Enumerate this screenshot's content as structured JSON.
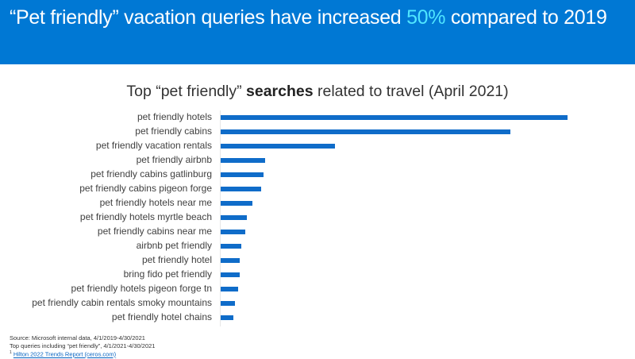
{
  "header": {
    "headline_prefix": "“Pet friendly” vacation queries have increased ",
    "headline_highlight": "50%",
    "headline_suffix": " compared to 2019",
    "banner_color": "#0078d4",
    "highlight_color": "#50e6ff"
  },
  "chart_title": {
    "prefix": "Top “pet friendly” ",
    "bold": "searches",
    "suffix": " related to travel (April 2021)"
  },
  "chart_data": {
    "type": "bar",
    "orientation": "horizontal",
    "title": "Top “pet friendly” searches related to travel (April 2021)",
    "xlabel": "",
    "ylabel": "",
    "bar_color": "#0f6cc9",
    "grid": false,
    "legend": null,
    "value_axis_labels": false,
    "note": "Relative values normalized to top query = 100 (no axis ticks shown)",
    "categories": [
      "pet friendly hotels",
      "pet friendly cabins",
      "pet friendly vacation rentals",
      "pet friendly airbnb",
      "pet friendly cabins gatlinburg",
      "pet friendly cabins pigeon forge",
      "pet friendly hotels near me",
      "pet friendly hotels myrtle beach",
      "pet friendly cabins near me",
      "airbnb pet friendly",
      "pet friendly hotel",
      "bring fido pet friendly",
      "pet friendly hotels pigeon forge tn",
      "pet friendly cabin rentals smoky mountains",
      "pet friendly hotel chains"
    ],
    "values": [
      100,
      83.5,
      33,
      12.8,
      12.4,
      11.7,
      9.2,
      7.6,
      7.1,
      6.0,
      5.5,
      5.5,
      5.0,
      4.1,
      3.7
    ]
  },
  "rows": [
    {
      "label": "pet friendly hotels",
      "pct": "100%"
    },
    {
      "label": "pet friendly cabins",
      "pct": "83.5%"
    },
    {
      "label": "pet friendly vacation rentals",
      "pct": "33%"
    },
    {
      "label": "pet friendly airbnb",
      "pct": "12.8%"
    },
    {
      "label": "pet friendly cabins gatlinburg",
      "pct": "12.4%"
    },
    {
      "label": "pet friendly cabins pigeon forge",
      "pct": "11.7%"
    },
    {
      "label": "pet friendly hotels near me",
      "pct": "9.2%"
    },
    {
      "label": "pet friendly hotels myrtle beach",
      "pct": "7.6%"
    },
    {
      "label": "pet friendly cabins near me",
      "pct": "7.1%"
    },
    {
      "label": "airbnb pet friendly",
      "pct": "6.0%"
    },
    {
      "label": "pet friendly hotel",
      "pct": "5.5%"
    },
    {
      "label": "bring fido pet friendly",
      "pct": "5.5%"
    },
    {
      "label": "pet friendly hotels pigeon forge tn",
      "pct": "5.0%"
    },
    {
      "label": "pet friendly cabin rentals smoky mountains",
      "pct": "4.1%"
    },
    {
      "label": "pet friendly hotel chains",
      "pct": "3.7%"
    }
  ],
  "footer": {
    "source_line": "Source: Microsoft internal data, 4/1/2019-4/30/2021",
    "queries_line": "Top queries including “pet friendly”, 4/1/2021-4/30/2021",
    "footnote_marker": "1",
    "link_text": "Hilton 2022 Trends Report (ceros.com)"
  }
}
